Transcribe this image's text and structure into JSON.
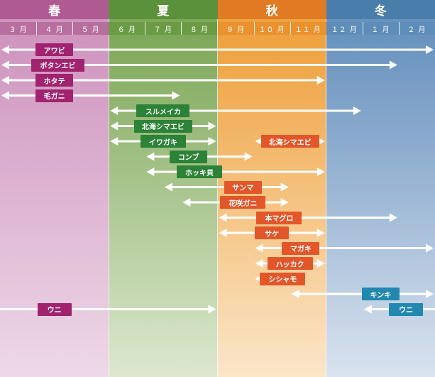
{
  "colors": {
    "spring": "#b05a94",
    "summer": "#5c913c",
    "autumn": "#e07b24",
    "winter": "#4a7eaa",
    "spring_month": "#b86f9f",
    "summer_month": "#6b9c45",
    "autumn_month": "#e9922f",
    "winter_month": "#5d8db8",
    "label_spring": "#a1226f",
    "label_summer": "#2c8237",
    "label_autumn": "#e2562a",
    "label_winter": "#2288b0",
    "arrow": "#ffffff"
  },
  "chart_data": {
    "type": "timeline",
    "seasons": [
      {
        "name": "春",
        "key": "spring",
        "months": [
          "３ 月",
          "４ 月",
          "５ 月"
        ]
      },
      {
        "name": "夏",
        "key": "summer",
        "months": [
          "６ 月",
          "７ 月",
          "８ 月"
        ]
      },
      {
        "name": "秋",
        "key": "autumn",
        "months": [
          "９ 月",
          "１０ 月",
          "１１ 月"
        ]
      },
      {
        "name": "冬",
        "key": "winter",
        "months": [
          "１２ 月",
          "１ 月",
          "２ 月"
        ]
      }
    ],
    "items": [
      {
        "name": "アワビ",
        "start": 0,
        "end": 12,
        "label_at": 1.5,
        "season": "spring"
      },
      {
        "name": "ボタンエビ",
        "start": 0,
        "end": 11,
        "label_at": 1.5,
        "season": "spring"
      },
      {
        "name": "ホタテ",
        "start": 0,
        "end": 9,
        "label_at": 1.5,
        "season": "spring"
      },
      {
        "name": "毛ガニ",
        "start": 0,
        "end": 5,
        "label_at": 1.5,
        "season": "spring"
      },
      {
        "name": "スルメイカ",
        "start": 3,
        "end": 10,
        "label_at": 4.5,
        "season": "summer"
      },
      {
        "name": "北海シマエビ",
        "start": 3,
        "end": 6,
        "label_at": 4.5,
        "season": "summer"
      },
      {
        "name": "北海シマエビ",
        "start": 7,
        "end": 9,
        "label_at": 8,
        "season": "autumn"
      },
      {
        "name": "イワガキ",
        "start": 3,
        "end": 6,
        "label_at": 4.5,
        "season": "summer"
      },
      {
        "name": "コンブ",
        "start": 4,
        "end": 7,
        "label_at": 5.2,
        "season": "summer"
      },
      {
        "name": "ホッキ貝",
        "start": 4,
        "end": 9,
        "label_at": 5.5,
        "season": "summer"
      },
      {
        "name": "サンマ",
        "start": 4.5,
        "end": 8,
        "label_at": 6.7,
        "season": "autumn"
      },
      {
        "name": "花咲ガニ",
        "start": 5,
        "end": 8,
        "label_at": 6.7,
        "season": "autumn"
      },
      {
        "name": "本マグロ",
        "start": 6,
        "end": 11,
        "label_at": 7.7,
        "season": "autumn"
      },
      {
        "name": "サケ",
        "start": 6,
        "end": 9,
        "label_at": 7.5,
        "season": "autumn"
      },
      {
        "name": "マガキ",
        "start": 7,
        "end": 12,
        "label_at": 8.3,
        "season": "autumn"
      },
      {
        "name": "ハッカク",
        "start": 7,
        "end": 9,
        "label_at": 8,
        "season": "autumn"
      },
      {
        "name": "シシャモ",
        "start": 7,
        "end": 8,
        "label_at": 7.8,
        "season": "autumn"
      },
      {
        "name": "キンキ",
        "start": 8,
        "end": 12,
        "label_at": 10.5,
        "season": "winter"
      },
      {
        "name": "ウニ",
        "start": 0,
        "end": 6,
        "label_at": 1.5,
        "season": "spring"
      },
      {
        "name": "ウニ",
        "start": 10,
        "end": 12,
        "label_at": 11.2,
        "season": "winter"
      }
    ]
  }
}
